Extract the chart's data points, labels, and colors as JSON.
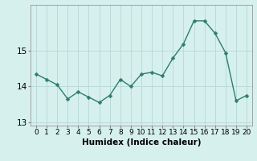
{
  "x": [
    0,
    1,
    2,
    3,
    4,
    5,
    6,
    7,
    8,
    9,
    10,
    11,
    12,
    13,
    14,
    15,
    16,
    17,
    18,
    19,
    20
  ],
  "y": [
    14.35,
    14.2,
    14.05,
    13.65,
    13.85,
    13.7,
    13.55,
    13.75,
    14.2,
    14.0,
    14.35,
    14.4,
    14.3,
    14.8,
    15.2,
    15.85,
    15.85,
    15.5,
    14.95,
    13.6,
    13.75
  ],
  "line_color": "#2e7d6e",
  "marker": "D",
  "marker_size": 2.5,
  "bg_color": "#d6f0ee",
  "grid_color": "#b8d8d4",
  "xlabel": "Humidex (Indice chaleur)",
  "xlabel_fontsize": 7.5,
  "xlabel_fontweight": "bold",
  "yticks": [
    13,
    14,
    15
  ],
  "xticks": [
    0,
    1,
    2,
    3,
    4,
    5,
    6,
    7,
    8,
    9,
    10,
    11,
    12,
    13,
    14,
    15,
    16,
    17,
    18,
    19,
    20
  ],
  "ylim": [
    12.9,
    16.3
  ],
  "xlim": [
    -0.5,
    20.5
  ],
  "tick_fontsize": 6.5,
  "ytick_fontsize": 7.5,
  "axis_color": "#888888",
  "line_width": 1.0
}
